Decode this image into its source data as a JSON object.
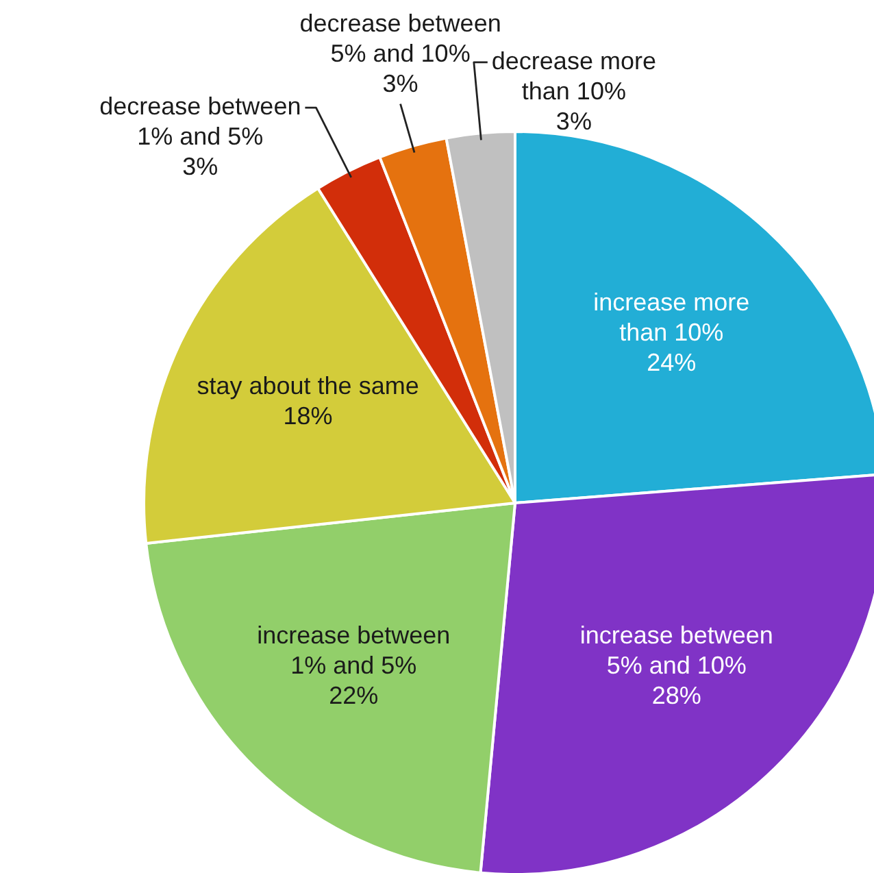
{
  "chart_data": {
    "type": "pie",
    "categories": [
      "increase more than 10%",
      "increase between 5% and 10%",
      "increase between 1% and 5%",
      "stay about the same",
      "decrease between 1% and 5%",
      "decrease between 5% and 10%",
      "decrease more than 10%"
    ],
    "values": [
      24,
      28,
      22,
      18,
      3,
      3,
      3
    ],
    "value_labels": [
      "24%",
      "28%",
      "22%",
      "18%",
      "3%",
      "3%",
      "3%"
    ],
    "colors": [
      "#22aed6",
      "#8033c6",
      "#92cf6a",
      "#d3cc3a",
      "#d22e0a",
      "#e5720f",
      "#c0c0c0"
    ]
  }
}
